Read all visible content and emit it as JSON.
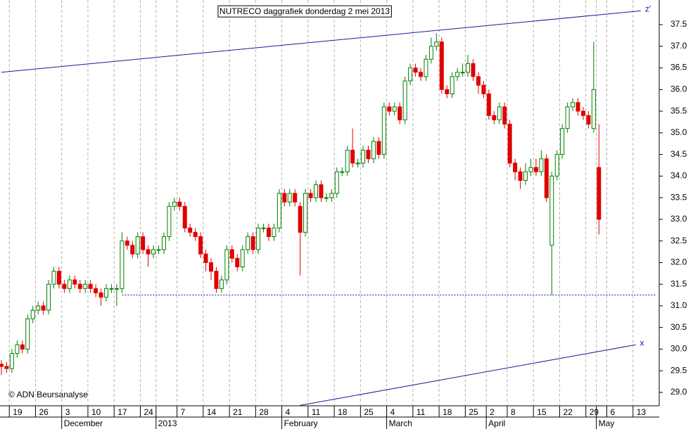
{
  "chart_data": {
    "type": "candlestick",
    "title": "NUTRECO daggrafiek donderdag 2 mei 2013",
    "copyright": "© ADN Beursanalyse",
    "up_color": "#008000",
    "down_color": "#e00000",
    "grid": true,
    "categories": [
      null,
      null,
      "19",
      null,
      null,
      null,
      null,
      "26",
      null,
      null,
      null,
      null,
      "3",
      null,
      null,
      null,
      null,
      "10",
      null,
      null,
      null,
      null,
      "17",
      null,
      null,
      null,
      null,
      "24",
      null,
      null,
      null,
      null,
      null,
      null,
      "7",
      null,
      null,
      null,
      null,
      "14",
      null,
      null,
      null,
      null,
      "21",
      null,
      null,
      null,
      null,
      "28",
      null,
      null,
      null,
      null,
      "4",
      null,
      null,
      null,
      null,
      "11",
      null,
      null,
      null,
      null,
      "18",
      null,
      null,
      null,
      null,
      "25",
      null,
      null,
      null,
      null,
      "4",
      null,
      null,
      null,
      null,
      "11",
      null,
      null,
      null,
      null,
      "18",
      null,
      null,
      null,
      null,
      "25",
      null,
      null,
      null,
      "2",
      null,
      null,
      null,
      "8",
      null,
      null,
      null,
      null,
      "15",
      null,
      null,
      null,
      null,
      "22",
      null,
      null,
      null,
      null,
      "29",
      null,
      null,
      null,
      "6",
      null,
      null,
      null,
      null,
      "13",
      null,
      null,
      null,
      null
    ],
    "months": [
      null,
      null,
      null,
      null,
      null,
      null,
      null,
      null,
      null,
      null,
      null,
      null,
      "December",
      null,
      null,
      null,
      null,
      null,
      null,
      null,
      null,
      null,
      null,
      null,
      null,
      null,
      null,
      null,
      null,
      null,
      "2013",
      null,
      null,
      null,
      null,
      null,
      null,
      null,
      null,
      null,
      null,
      null,
      null,
      null,
      null,
      null,
      null,
      null,
      null,
      null,
      null,
      null,
      null,
      null,
      "February",
      null,
      null,
      null,
      null,
      null,
      null,
      null,
      null,
      null,
      null,
      null,
      null,
      null,
      null,
      null,
      null,
      null,
      null,
      null,
      "March",
      null,
      null,
      null,
      null,
      null,
      null,
      null,
      null,
      null,
      null,
      null,
      null,
      null,
      null,
      null,
      null,
      null,
      null,
      "April",
      null,
      null,
      null,
      null,
      null,
      null,
      null,
      null,
      null,
      null,
      null,
      null,
      null,
      null,
      null,
      null,
      null,
      null,
      null,
      null,
      "May",
      null,
      null,
      null,
      null,
      null,
      null,
      null,
      null,
      null,
      null,
      null
    ],
    "open": [
      29.65,
      29.6,
      29.55,
      29.9,
      30.1,
      30.0,
      30.7,
      30.9,
      31.0,
      30.9,
      31.5,
      31.8,
      31.5,
      31.4,
      31.6,
      31.5,
      31.4,
      31.5,
      31.4,
      31.3,
      31.2,
      31.4,
      31.4,
      31.4,
      32.5,
      32.4,
      32.2,
      32.6,
      32.3,
      32.2,
      32.3,
      32.3,
      32.6,
      33.3,
      33.4,
      33.3,
      32.8,
      32.7,
      32.6,
      32.2,
      32.0,
      31.8,
      31.4,
      31.6,
      32.3,
      32.1,
      31.9,
      32.3,
      32.6,
      32.3,
      32.8,
      32.8,
      32.6,
      32.8,
      33.6,
      33.4,
      33.6,
      33.3,
      32.7,
      33.6,
      33.5,
      33.8,
      33.5,
      33.5,
      33.6,
      34.1,
      34.1,
      34.6,
      34.3,
      34.3,
      34.6,
      34.4,
      34.8,
      34.5,
      35.6,
      35.5,
      35.6,
      35.3,
      36.2,
      36.5,
      36.4,
      36.3,
      36.7,
      37.0,
      37.1,
      36.0,
      35.9,
      36.3,
      36.4,
      36.4,
      36.6,
      36.3,
      36.1,
      35.9,
      35.4,
      35.3,
      35.6,
      35.2,
      34.3,
      34.1,
      33.9,
      34.1,
      34.2,
      34.1,
      34.4,
      32.4,
      34.0,
      34.5,
      35.1,
      35.6,
      35.7,
      35.5,
      35.4,
      35.1,
      34.2,
      null,
      null,
      null,
      null,
      null,
      null,
      null,
      null,
      null,
      null,
      null
    ],
    "high": [
      29.75,
      29.7,
      30.0,
      30.2,
      30.2,
      30.8,
      31.0,
      31.1,
      31.1,
      31.6,
      31.9,
      31.9,
      31.6,
      31.7,
      31.7,
      31.6,
      31.6,
      31.6,
      31.5,
      31.4,
      31.5,
      31.5,
      31.5,
      32.7,
      32.6,
      32.5,
      32.7,
      32.7,
      32.4,
      32.4,
      32.4,
      32.7,
      33.4,
      33.5,
      33.5,
      33.4,
      32.9,
      32.8,
      32.7,
      32.3,
      32.1,
      31.9,
      31.7,
      32.4,
      32.4,
      32.2,
      32.4,
      32.7,
      32.7,
      32.9,
      32.9,
      32.9,
      32.9,
      33.7,
      33.7,
      33.7,
      33.7,
      33.4,
      33.7,
      33.7,
      33.9,
      33.9,
      33.6,
      33.7,
      34.2,
      34.2,
      34.7,
      35.1,
      34.4,
      34.7,
      34.7,
      34.9,
      34.9,
      35.7,
      35.7,
      35.7,
      35.7,
      36.3,
      36.6,
      36.6,
      36.5,
      36.8,
      37.2,
      37.3,
      37.2,
      36.1,
      36.4,
      36.5,
      36.6,
      36.8,
      36.7,
      36.4,
      36.2,
      36.0,
      35.5,
      35.7,
      35.7,
      35.3,
      34.4,
      34.2,
      34.3,
      34.4,
      34.4,
      34.6,
      34.5,
      34.1,
      34.6,
      35.2,
      35.7,
      35.8,
      35.8,
      35.6,
      35.5,
      37.1,
      35.2,
      null,
      null,
      null,
      null,
      null,
      null,
      null,
      null,
      null,
      null,
      null
    ],
    "low": [
      29.4,
      29.45,
      29.45,
      29.8,
      29.9,
      29.9,
      30.6,
      30.8,
      30.8,
      30.8,
      31.4,
      31.4,
      31.3,
      31.3,
      31.4,
      31.3,
      31.3,
      31.3,
      31.2,
      31.0,
      31.1,
      31.3,
      31.0,
      31.3,
      32.3,
      32.1,
      32.1,
      32.2,
      31.9,
      32.1,
      32.2,
      32.2,
      32.5,
      33.2,
      33.2,
      32.7,
      32.6,
      32.5,
      32.1,
      31.8,
      31.6,
      31.3,
      31.3,
      31.5,
      32.0,
      31.8,
      31.8,
      32.2,
      32.2,
      32.2,
      32.7,
      32.5,
      32.5,
      32.7,
      33.3,
      33.3,
      33.3,
      31.7,
      32.6,
      33.4,
      33.4,
      33.4,
      33.4,
      33.4,
      33.5,
      34.0,
      34.0,
      34.2,
      34.2,
      34.2,
      34.3,
      34.3,
      34.4,
      34.4,
      35.4,
      35.4,
      35.2,
      35.2,
      36.1,
      36.3,
      36.2,
      36.2,
      36.6,
      36.9,
      35.9,
      35.8,
      35.8,
      36.2,
      36.3,
      36.3,
      36.2,
      35.9,
      35.8,
      35.3,
      35.2,
      35.2,
      35.1,
      34.2,
      33.9,
      33.7,
      33.8,
      34.0,
      34.0,
      34.0,
      33.4,
      31.25,
      33.9,
      34.4,
      35.0,
      35.5,
      35.4,
      35.3,
      35.1,
      35.0,
      32.65,
      null,
      null,
      null,
      null,
      null,
      null,
      null,
      null,
      null,
      null,
      null
    ],
    "close": [
      29.6,
      29.55,
      29.9,
      30.1,
      30.0,
      30.7,
      30.9,
      31.0,
      30.9,
      31.5,
      31.8,
      31.5,
      31.4,
      31.6,
      31.5,
      31.4,
      31.5,
      31.4,
      31.3,
      31.2,
      31.4,
      31.4,
      31.4,
      32.5,
      32.4,
      32.2,
      32.6,
      32.3,
      32.2,
      32.3,
      32.3,
      32.6,
      33.3,
      33.4,
      33.3,
      32.8,
      32.7,
      32.6,
      32.2,
      32.0,
      31.8,
      31.4,
      31.6,
      32.3,
      32.1,
      31.9,
      32.3,
      32.6,
      32.3,
      32.8,
      32.8,
      32.6,
      32.8,
      33.6,
      33.4,
      33.6,
      33.4,
      32.7,
      33.6,
      33.5,
      33.8,
      33.5,
      33.5,
      33.6,
      34.1,
      34.1,
      34.6,
      34.3,
      34.3,
      34.6,
      34.4,
      34.8,
      34.5,
      35.6,
      35.5,
      35.6,
      35.3,
      36.2,
      36.5,
      36.4,
      36.3,
      36.7,
      37.0,
      37.1,
      36.0,
      35.9,
      36.3,
      36.4,
      36.4,
      36.6,
      36.3,
      36.1,
      35.9,
      35.4,
      35.3,
      35.6,
      35.2,
      34.3,
      34.1,
      33.9,
      34.1,
      34.2,
      34.1,
      34.4,
      33.5,
      34.0,
      34.5,
      35.1,
      35.6,
      35.7,
      35.5,
      35.4,
      35.2,
      36.0,
      33.0,
      null,
      null,
      null,
      null,
      null,
      null,
      null,
      null,
      null,
      null,
      null
    ],
    "lines": [
      {
        "label": "z'",
        "color": "#1a1aa0",
        "dashed": false,
        "x": [
          0,
          122
        ],
        "values": [
          36.4,
          37.82
        ]
      },
      {
        "label": "x",
        "color": "#1a1aa0",
        "dashed": false,
        "x": [
          57,
          121
        ],
        "values": [
          28.7,
          30.1
        ]
      },
      {
        "color": "#1a1aa0",
        "dashed": true,
        "x": [
          23,
          125
        ],
        "values": [
          31.25,
          31.25
        ]
      }
    ],
    "ylim": [
      28.69,
      38.07
    ],
    "yticks": [
      {
        "value": 29,
        "label": "29.0"
      },
      29.5,
      {
        "value": 30,
        "label": "30.0"
      },
      30.5,
      {
        "value": 31,
        "label": "31.0"
      },
      31.5,
      {
        "value": 32,
        "label": "32.0"
      },
      32.5,
      {
        "value": 33,
        "label": "33.0"
      },
      33.5,
      {
        "value": 34,
        "label": "34.0"
      },
      34.5,
      {
        "value": 35,
        "label": "35.0"
      },
      35.5,
      {
        "value": 36,
        "label": "36.0"
      },
      36.5,
      {
        "value": 37,
        "label": "37.0"
      },
      37.5
    ]
  }
}
